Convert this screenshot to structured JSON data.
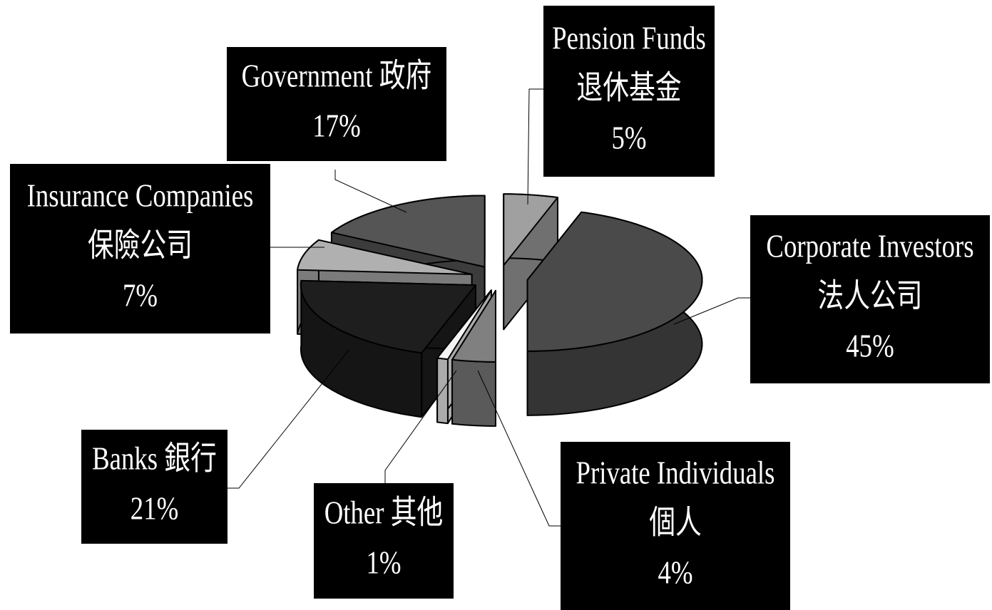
{
  "chart_data": {
    "type": "pie",
    "categories": [
      [
        "Pension Funds",
        "退休基金"
      ],
      [
        "Corporate Investors",
        "法人公司"
      ],
      [
        "Private Individuals",
        "個人"
      ],
      [
        "Other 其他"
      ],
      [
        "Banks 銀行"
      ],
      [
        "Insurance Companies",
        "保險公司"
      ],
      [
        "Government 政府"
      ]
    ],
    "values": [
      5,
      45,
      4,
      1,
      21,
      7,
      17
    ],
    "value_labels": [
      "5%",
      "45%",
      "4%",
      "1%",
      "21%",
      "7%",
      "17%"
    ],
    "colors": [
      "#a0a0a0",
      "#4a4a4a",
      "#808080",
      "#f4f4f4",
      "#1e1e1e",
      "#b0b0b0",
      "#555555"
    ]
  }
}
